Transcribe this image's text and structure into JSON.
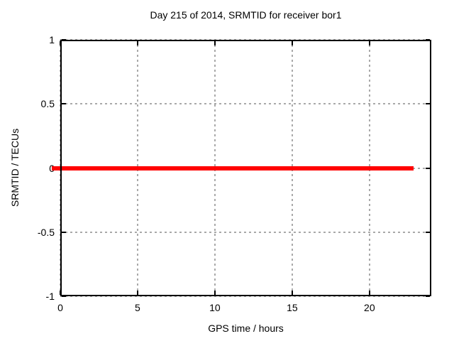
{
  "chart_data": {
    "type": "line",
    "title": "Day 215 of 2014, SRMTID for receiver bor1",
    "xlabel": "GPS time / hours",
    "ylabel": "SRMTID / TECUs",
    "xlim": [
      0,
      24
    ],
    "ylim": [
      -1,
      1
    ],
    "xticks": {
      "values": [
        0,
        5,
        10,
        15,
        20
      ],
      "labels": [
        "0",
        "5",
        "10",
        "15",
        "20"
      ]
    },
    "yticks": {
      "values": [
        1,
        0.5,
        0,
        -0.5,
        -1
      ],
      "labels": [
        "1",
        "0.5",
        "0",
        "-0.5",
        "-1"
      ]
    },
    "grid": true,
    "legend_position": "none",
    "series": [
      {
        "name": "SRMTID",
        "color": "#ff0000",
        "x": [
          0,
          22.85
        ],
        "y": [
          0,
          0
        ]
      }
    ]
  },
  "colors": {
    "background": "#ffffff",
    "text": "#000000",
    "axis": "#000000",
    "grid": "#a9a9a9",
    "series": "#ff0000"
  }
}
